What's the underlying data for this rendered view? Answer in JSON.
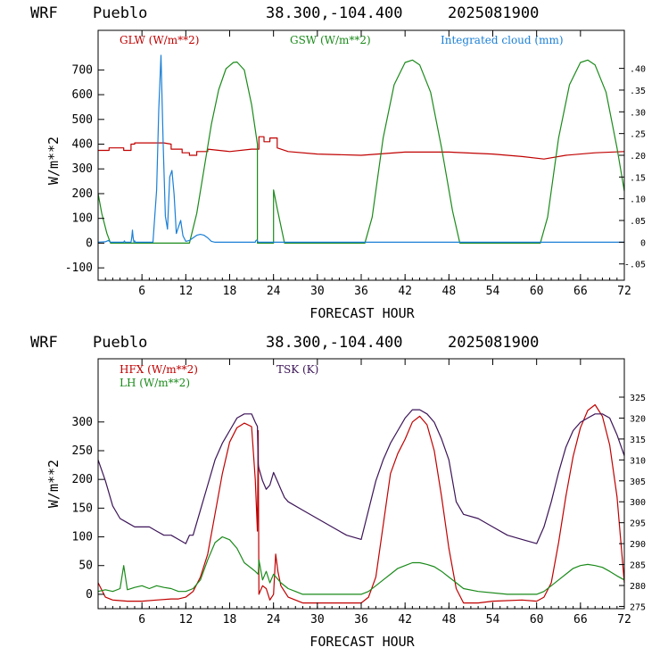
{
  "colors": {
    "red": "#c00000",
    "green": "#1a8a1a",
    "blue": "#1a7fd6",
    "purple": "#3c1458",
    "black": "#000000"
  },
  "chart_data": [
    {
      "type": "line",
      "header": {
        "model": "WRF",
        "station": "Pueblo",
        "coords": "38.300,-104.400",
        "init": "2025081900"
      },
      "xlabel": "FORECAST HOUR",
      "ylabel": "W/m**2",
      "xlim": [
        0,
        72
      ],
      "ylim": [
        -150,
        860
      ],
      "xticks": [
        6,
        12,
        18,
        24,
        30,
        36,
        42,
        48,
        54,
        60,
        66,
        72
      ],
      "yticks": [
        -100,
        0,
        100,
        200,
        300,
        400,
        500,
        600,
        700
      ],
      "y2": {
        "ticks": [
          -0.05,
          0,
          0.05,
          0.1,
          0.15,
          0.2,
          0.25,
          0.3,
          0.35,
          0.4
        ],
        "tick_labels": [
          "-.05",
          "0",
          ".05",
          ".10",
          ".15",
          ".20",
          ".25",
          ".30",
          ".35",
          ".40"
        ],
        "lim": [
          -0.0875,
          0.4875
        ]
      },
      "grid": false,
      "legend": [
        {
          "name": "GLW (W/m**2)",
          "color": "#c00000"
        },
        {
          "name": "GSW (W/m**2)",
          "color": "#1a8a1a"
        },
        {
          "name": "Integrated cloud (mm)",
          "color": "#1a7fd6"
        }
      ],
      "series": [
        {
          "name": "GLW (W/m**2)",
          "axis": "left",
          "color": "#c00000",
          "x": [
            0,
            1.5,
            1.5,
            3.5,
            3.5,
            4.5,
            4.5,
            5,
            5,
            7,
            9,
            10,
            10,
            11.5,
            11.5,
            12.5,
            12.5,
            13.5,
            13.5,
            15,
            15,
            18,
            21,
            22,
            22,
            22.7,
            22.7,
            23.5,
            23.5,
            24.5,
            24.5,
            26,
            30,
            36,
            42,
            48,
            54,
            58,
            61,
            64,
            68,
            72
          ],
          "y": [
            375,
            375,
            385,
            385,
            375,
            375,
            400,
            400,
            405,
            405,
            405,
            400,
            380,
            380,
            365,
            365,
            355,
            355,
            370,
            370,
            380,
            370,
            380,
            380,
            430,
            430,
            410,
            410,
            425,
            425,
            385,
            370,
            360,
            355,
            368,
            368,
            360,
            350,
            340,
            355,
            365,
            370
          ]
        },
        {
          "name": "GSW (W/m**2)",
          "axis": "left",
          "color": "#1a8a1a",
          "x": [
            0,
            0.5,
            1.2,
            1.7,
            2,
            12.5,
            13.5,
            14.5,
            15.5,
            16.5,
            17.5,
            18.5,
            19,
            20,
            21,
            21.8,
            21.8,
            24,
            24,
            24.5,
            25.5,
            36.5,
            37.5,
            39,
            40.5,
            42,
            43,
            44,
            45.5,
            47,
            48.5,
            49.5,
            60.5,
            61.5,
            63,
            64.5,
            66,
            67,
            68,
            69.5,
            71,
            72
          ],
          "y": [
            200,
            120,
            40,
            0,
            0,
            0,
            120,
            300,
            480,
            620,
            705,
            730,
            732,
            700,
            560,
            400,
            0,
            0,
            215,
            140,
            0,
            0,
            105,
            425,
            640,
            730,
            740,
            720,
            610,
            385,
            130,
            0,
            0,
            105,
            425,
            640,
            730,
            740,
            720,
            610,
            385,
            210
          ]
        },
        {
          "name": "Integrated cloud (mm)",
          "axis": "right",
          "color": "#1a7fd6",
          "x": [
            0,
            1,
            1.4,
            1.7,
            3.5,
            3.6,
            3.7,
            4.5,
            4.6,
            4.7,
            4.8,
            4.9,
            5.0,
            5.1,
            5.2,
            7.5,
            8,
            8.3,
            8.6,
            8.9,
            9.2,
            9.5,
            9.8,
            10.1,
            10.4,
            10.7,
            11.0,
            11.3,
            11.6,
            12,
            12.5,
            13,
            13.5,
            14,
            14.5,
            15,
            15.5,
            16,
            16.5,
            21.5,
            21.6,
            21.7,
            21.8,
            21.9,
            24,
            72
          ],
          "y": [
            0,
            0.001,
            0.004,
            0,
            0,
            0.003,
            0,
            0,
            0.01,
            0.028,
            0.01,
            0,
            0.003,
            0,
            0,
            0,
            0.12,
            0.305,
            0.43,
            0.23,
            0.06,
            0.03,
            0.15,
            0.165,
            0.11,
            0.02,
            0.035,
            0.05,
            0.015,
            0.002,
            0.004,
            0.01,
            0.016,
            0.018,
            0.016,
            0.01,
            0.002,
            0,
            0,
            0,
            0.004,
            0.005,
            0.003,
            0,
            0,
            0
          ]
        }
      ]
    },
    {
      "type": "line",
      "header": {
        "model": "WRF",
        "station": "Pueblo",
        "coords": "38.300,-104.400",
        "init": "2025081900"
      },
      "xlabel": "FORECAST HOUR",
      "ylabel": "W/m**2",
      "xlim": [
        0,
        72
      ],
      "ylim": [
        -25,
        410
      ],
      "xticks": [
        6,
        12,
        18,
        24,
        30,
        36,
        42,
        48,
        54,
        60,
        66,
        72
      ],
      "yticks": [
        0,
        50,
        100,
        150,
        200,
        250,
        300
      ],
      "y2": {
        "ticks": [
          275,
          280,
          285,
          290,
          295,
          300,
          305,
          310,
          315,
          320,
          325
        ],
        "tick_labels": [
          "275",
          "280",
          "285",
          "290",
          "295",
          "300",
          "305",
          "310",
          "315",
          "320",
          "325"
        ],
        "lim": [
          274.46,
          334.17
        ]
      },
      "grid": false,
      "legend": [
        {
          "name": "HFX (W/m**2)",
          "color": "#c00000"
        },
        {
          "name": "LH  (W/m**2)",
          "color": "#1a8a1a"
        },
        {
          "name": "TSK (K)",
          "color": "#3c1458"
        }
      ],
      "series": [
        {
          "name": "HFX (W/m**2)",
          "axis": "left",
          "color": "#c00000",
          "x": [
            0,
            1,
            2,
            4,
            6,
            8,
            10,
            11,
            12,
            12.5,
            13,
            14,
            15,
            16,
            17,
            18,
            19,
            20,
            21,
            21.5,
            21.8,
            21.9,
            22,
            22.5,
            23,
            23.5,
            24,
            24.3,
            24.6,
            25,
            26,
            28,
            30,
            36,
            37,
            38,
            39,
            40,
            41,
            42,
            43,
            44,
            45,
            46,
            47,
            48,
            49,
            50,
            52,
            54,
            58,
            60,
            61,
            62,
            63,
            64,
            65,
            66,
            67,
            68,
            69,
            70,
            71,
            72
          ],
          "y": [
            20,
            -5,
            -10,
            -12,
            -12,
            -10,
            -8,
            -8,
            -5,
            0,
            5,
            30,
            70,
            140,
            210,
            265,
            290,
            298,
            292,
            200,
            110,
            285,
            0,
            15,
            10,
            -10,
            0,
            70,
            40,
            15,
            -5,
            -15,
            -15,
            -15,
            -5,
            30,
            120,
            210,
            245,
            270,
            300,
            310,
            295,
            250,
            170,
            80,
            10,
            -15,
            -15,
            -12,
            -10,
            -12,
            -5,
            20,
            90,
            170,
            240,
            290,
            320,
            330,
            310,
            260,
            170,
            20
          ]
        },
        {
          "name": "LH  (W/m**2)",
          "axis": "left",
          "color": "#1a8a1a",
          "x": [
            0,
            1,
            2,
            3,
            3.5,
            4,
            5,
            6,
            7,
            8,
            9,
            10,
            11,
            12,
            13,
            14,
            15,
            16,
            17,
            18,
            19,
            20,
            21,
            21.5,
            21.9,
            22,
            22.5,
            23,
            23.5,
            24,
            25,
            26,
            27,
            28,
            30,
            36,
            37,
            38,
            39,
            40,
            41,
            42,
            43,
            44,
            45,
            46,
            47,
            48,
            49,
            50,
            52,
            56,
            60,
            61,
            62,
            63,
            64,
            65,
            66,
            67,
            68,
            69,
            70,
            71,
            72
          ],
          "y": [
            5,
            8,
            5,
            10,
            50,
            8,
            12,
            15,
            10,
            15,
            12,
            10,
            5,
            5,
            10,
            25,
            60,
            90,
            100,
            95,
            80,
            55,
            45,
            40,
            35,
            60,
            25,
            40,
            20,
            35,
            20,
            10,
            5,
            0,
            0,
            0,
            5,
            15,
            25,
            35,
            45,
            50,
            55,
            55,
            52,
            48,
            40,
            30,
            20,
            10,
            5,
            0,
            0,
            5,
            15,
            25,
            35,
            45,
            50,
            52,
            50,
            47,
            40,
            32,
            25
          ]
        },
        {
          "name": "TSK (K)",
          "axis": "right",
          "color": "#3c1458",
          "x": [
            0,
            1,
            2,
            3,
            4,
            5,
            6,
            7,
            8,
            9,
            10,
            11,
            12,
            12.5,
            13,
            14,
            15,
            16,
            17,
            18,
            19,
            20,
            21,
            21.5,
            21.8,
            21.9,
            22,
            22.5,
            23,
            23.5,
            24,
            24.5,
            25,
            25.5,
            26,
            28,
            30,
            32,
            34,
            36,
            37,
            38,
            39,
            40,
            41,
            42,
            43,
            44,
            45,
            46,
            47,
            48,
            49,
            50,
            52,
            54,
            56,
            58,
            60,
            61,
            62,
            63,
            64,
            65,
            66,
            67,
            68,
            69,
            70,
            71,
            72
          ],
          "y": [
            310,
            305,
            299,
            296,
            295,
            294,
            294,
            294,
            293,
            292,
            292,
            291,
            290,
            292,
            292,
            298,
            304,
            310,
            314,
            317,
            320,
            321,
            321,
            319,
            318,
            309,
            308,
            305,
            303,
            304,
            307,
            305,
            303,
            301,
            300,
            298,
            296,
            294,
            292,
            291,
            298,
            305,
            310,
            314,
            317,
            320,
            322,
            322,
            321,
            319,
            315,
            310,
            300,
            297,
            296,
            294,
            292,
            291,
            290,
            294,
            300,
            307,
            313,
            317,
            319,
            320,
            321,
            321,
            320,
            316,
            311
          ]
        }
      ]
    }
  ]
}
